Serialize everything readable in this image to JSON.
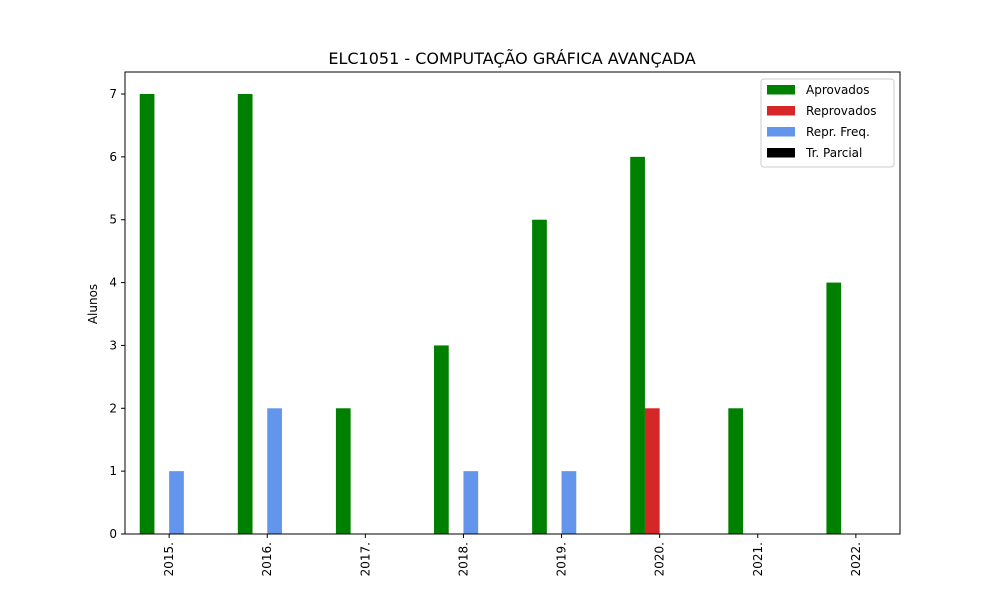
{
  "chart_data": {
    "type": "bar",
    "title": "ELC1051 - COMPUTAÇÃO GRÁFICA AVANÇADA",
    "xlabel": "",
    "ylabel": "Alunos",
    "categories": [
      "2015.",
      "2016.",
      "2017.",
      "2018.",
      "2019.",
      "2020.",
      "2021.",
      "2022."
    ],
    "series": [
      {
        "name": "Aprovados",
        "color": "#008000",
        "values": [
          7,
          7,
          2,
          3,
          5,
          6,
          2,
          4
        ]
      },
      {
        "name": "Reprovados",
        "color": "#d62728",
        "values": [
          0,
          0,
          0,
          0,
          0,
          2,
          0,
          0
        ]
      },
      {
        "name": "Repr. Freq.",
        "color": "#6495ed",
        "values": [
          1,
          2,
          0,
          1,
          1,
          0,
          0,
          0
        ]
      },
      {
        "name": "Tr. Parcial",
        "color": "#000000",
        "values": [
          0,
          0,
          0,
          0,
          0,
          0,
          0,
          0
        ]
      }
    ],
    "yticks": [
      "0",
      "1",
      "2",
      "3",
      "4",
      "5",
      "6",
      "7"
    ],
    "ylim": [
      0,
      7.35
    ],
    "grid": false,
    "legend_position": "top-right",
    "xtick_rotation": 90
  }
}
